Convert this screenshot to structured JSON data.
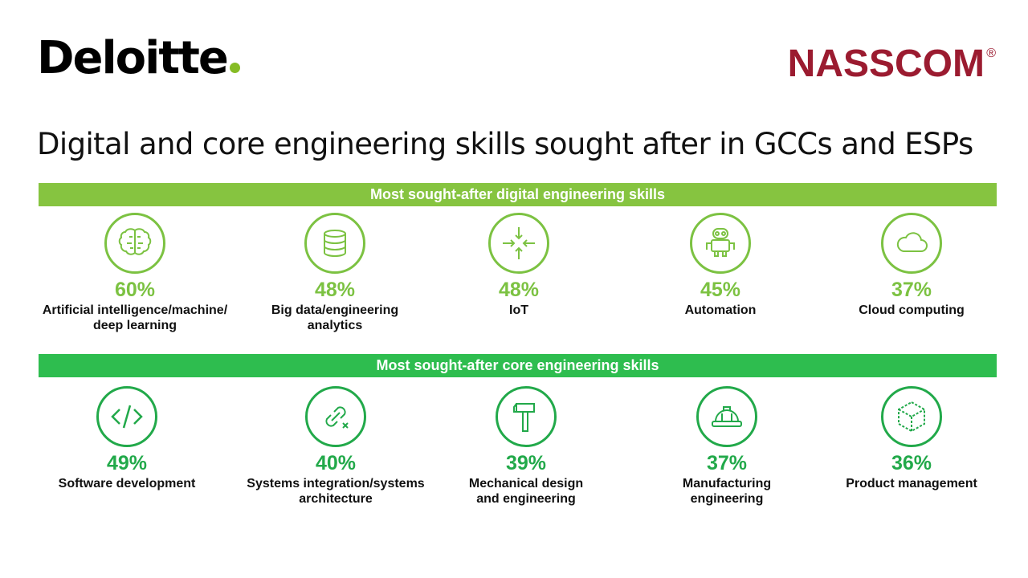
{
  "header": {
    "deloitte_logo": "Deloitte",
    "nasscom_logo": "NASSCOM",
    "nasscom_reg": "®",
    "title": "Digital and core engineering skills sought after in GCCs and ESPs"
  },
  "digital": {
    "heading": "Most sought-after  digital engineering skills",
    "accent_color": "#86c440",
    "skills": [
      {
        "pct": "60%",
        "label": "Artificial intelligence/machine/\ndeep learning",
        "icon": "brain-icon"
      },
      {
        "pct": "48%",
        "label": "Big data/engineering\nanalytics",
        "icon": "database-icon"
      },
      {
        "pct": "48%",
        "label": "IoT",
        "icon": "converge-arrows-icon"
      },
      {
        "pct": "45%",
        "label": "Automation",
        "icon": "robot-icon"
      },
      {
        "pct": "37%",
        "label": "Cloud computing",
        "icon": "cloud-icon"
      }
    ]
  },
  "core": {
    "heading": "Most sought-after core engineering skills",
    "accent_color": "#2ebd4f",
    "skills": [
      {
        "pct": "49%",
        "label": "Software development",
        "icon": "code-icon"
      },
      {
        "pct": "40%",
        "label": "Systems integration/systems\narchitecture",
        "icon": "link-icon"
      },
      {
        "pct": "39%",
        "label": "Mechanical design\nand engineering",
        "icon": "hammer-icon"
      },
      {
        "pct": "37%",
        "label": "Manufacturing\nengineering",
        "icon": "hard-hat-icon"
      },
      {
        "pct": "36%",
        "label": "Product management",
        "icon": "cube-icon"
      }
    ]
  }
}
